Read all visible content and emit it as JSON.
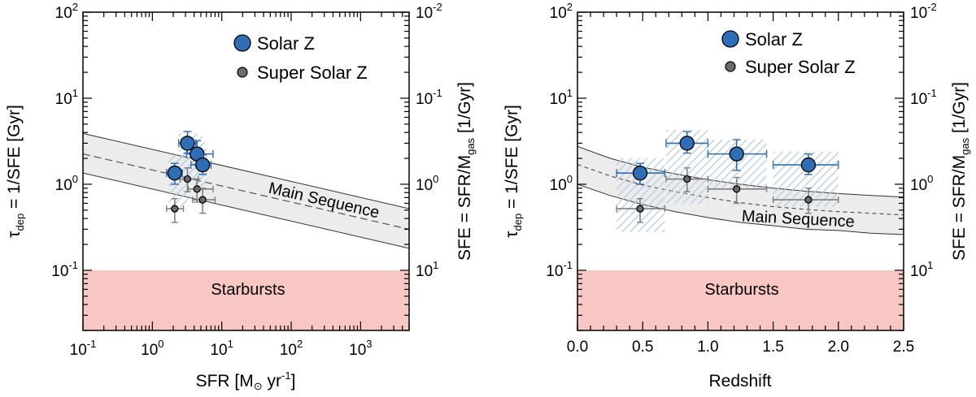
{
  "chart_data": [
    {
      "type": "scatter",
      "panel": "left",
      "xscale": "log",
      "yscale": "log",
      "xlim": [
        0.1,
        5000
      ],
      "ylim": [
        0.02,
        100
      ],
      "xlabel_main": "SFR [M",
      "xlabel_sun": "⊙",
      "xlabel_unit": " yr",
      "xlabel_exp": "-1",
      "xlabel_close": "]",
      "ylabel_tau": "τ",
      "ylabel_sub": "dep",
      "ylabel_rest": " = 1/SFE [Gyr]",
      "y2label_main": "SFE = SFR/M",
      "y2label_sub": "gas",
      "y2label_rest": " [1/Gyr]",
      "xticks": [
        {
          "v": 0.1,
          "base": "10",
          "exp": "-1"
        },
        {
          "v": 1,
          "base": "10",
          "exp": "0"
        },
        {
          "v": 10,
          "base": "10",
          "exp": "1"
        },
        {
          "v": 100,
          "base": "10",
          "exp": "2"
        },
        {
          "v": 1000,
          "base": "10",
          "exp": "3"
        }
      ],
      "yticks": [
        {
          "v": 0.1,
          "base": "10",
          "exp": "-1"
        },
        {
          "v": 1,
          "base": "10",
          "exp": "0"
        },
        {
          "v": 10,
          "base": "10",
          "exp": "1"
        },
        {
          "v": 100,
          "base": "10",
          "exp": "2"
        }
      ],
      "y2ticks": [
        {
          "v": 0.1,
          "base": "10",
          "exp": "1"
        },
        {
          "v": 1,
          "base": "10",
          "exp": "0"
        },
        {
          "v": 10,
          "base": "10",
          "exp": "-1"
        },
        {
          "v": 100,
          "base": "10",
          "exp": "-2"
        }
      ],
      "starburst": {
        "ymax": 0.1,
        "label": "Starbursts",
        "color": "#f8c7c4"
      },
      "main_sequence": {
        "label": "Main Sequence",
        "x": [
          0.1,
          5000
        ],
        "center": [
          2.25,
          0.3
        ],
        "upper": [
          3.9,
          0.52
        ],
        "lower": [
          1.35,
          0.18
        ],
        "band_color": "#ececec"
      },
      "series": [
        {
          "name": "Solar Z",
          "color": "#2f6db5",
          "points": [
            {
              "x": 2.1,
              "y": 1.35,
              "xerr": [
                1.6,
                2.7
              ],
              "yerr": [
                1.0,
                1.75
              ],
              "box": [
                1.7,
                3.3,
                0.55,
                2.2
              ]
            },
            {
              "x": 3.2,
              "y": 3.0,
              "xerr": [
                2.4,
                4.2
              ],
              "yerr": [
                2.3,
                4.1
              ],
              "box": [
                2.4,
                4.4,
                1.2,
                3.9
              ]
            },
            {
              "x": 4.4,
              "y": 2.25,
              "xerr": [
                3.1,
                7.5
              ],
              "yerr": [
                1.7,
                3.2
              ],
              "box": [
                3.2,
                5.7,
                1.1,
                3.6
              ]
            },
            {
              "x": 5.3,
              "y": 1.68,
              "xerr": [
                3.6,
                7.0
              ],
              "yerr": [
                1.3,
                2.2
              ],
              "box": [
                4.0,
                6.2,
                0.95,
                2.6
              ]
            }
          ]
        },
        {
          "name": "Super Solar Z",
          "color": "#6b6b6b",
          "points": [
            {
              "x": 2.1,
              "y": 0.52,
              "xerr": [
                1.6,
                2.8
              ],
              "yerr": [
                0.36,
                0.68
              ]
            },
            {
              "x": 3.2,
              "y": 1.15,
              "xerr": [
                2.5,
                4.6
              ],
              "yerr": [
                0.82,
                1.55
              ]
            },
            {
              "x": 4.4,
              "y": 0.88,
              "xerr": [
                3.3,
                7.5
              ],
              "yerr": [
                0.62,
                1.15
              ]
            },
            {
              "x": 5.3,
              "y": 0.66,
              "xerr": [
                3.8,
                8.0
              ],
              "yerr": [
                0.46,
                0.9
              ]
            }
          ]
        }
      ]
    },
    {
      "type": "scatter",
      "panel": "right",
      "xscale": "linear",
      "yscale": "log",
      "xlim": [
        0,
        2.5
      ],
      "ylim": [
        0.02,
        100
      ],
      "xlabel": "Redshift",
      "ylabel_tau": "τ",
      "ylabel_sub": "dep",
      "ylabel_rest": " = 1/SFE [Gyr]",
      "y2label_main": "SFE = SFR/M",
      "y2label_sub": "gas",
      "y2label_rest": " [1/Gyr]",
      "xticks": [
        {
          "v": 0.0,
          "label": "0.0"
        },
        {
          "v": 0.5,
          "label": "0.5"
        },
        {
          "v": 1.0,
          "label": "1.0"
        },
        {
          "v": 1.5,
          "label": "1.5"
        },
        {
          "v": 2.0,
          "label": "2.0"
        },
        {
          "v": 2.5,
          "label": "2.5"
        }
      ],
      "yticks": [
        {
          "v": 0.1,
          "base": "10",
          "exp": "-1"
        },
        {
          "v": 1,
          "base": "10",
          "exp": "0"
        },
        {
          "v": 10,
          "base": "10",
          "exp": "1"
        },
        {
          "v": 100,
          "base": "10",
          "exp": "2"
        }
      ],
      "y2ticks": [
        {
          "v": 0.1,
          "base": "10",
          "exp": "1"
        },
        {
          "v": 1,
          "base": "10",
          "exp": "0"
        },
        {
          "v": 10,
          "base": "10",
          "exp": "-1"
        },
        {
          "v": 100,
          "base": "10",
          "exp": "-2"
        }
      ],
      "starburst": {
        "ymax": 0.1,
        "label": "Starbursts",
        "color": "#f8c7c4"
      },
      "main_sequence": {
        "label": "Main Sequence",
        "x": [
          0,
          0.25,
          0.5,
          0.75,
          1.0,
          1.25,
          1.5,
          1.75,
          2.0,
          2.25,
          2.5
        ],
        "center": [
          1.7,
          1.25,
          0.98,
          0.82,
          0.7,
          0.61,
          0.55,
          0.51,
          0.48,
          0.46,
          0.44
        ],
        "upper": [
          2.75,
          2.0,
          1.58,
          1.32,
          1.13,
          1.0,
          0.9,
          0.83,
          0.78,
          0.74,
          0.71
        ],
        "lower": [
          1.0,
          0.74,
          0.58,
          0.48,
          0.41,
          0.36,
          0.33,
          0.3,
          0.29,
          0.27,
          0.26
        ],
        "band_color": "#ececec"
      },
      "series": [
        {
          "name": "Solar Z",
          "color": "#2f6db5",
          "points": [
            {
              "x": 0.48,
              "y": 1.35,
              "xerr": [
                0.3,
                0.67
              ],
              "yerr": [
                1.0,
                1.75
              ],
              "box": [
                0.3,
                0.67,
                0.28,
                2.0
              ]
            },
            {
              "x": 0.84,
              "y": 3.0,
              "xerr": [
                0.68,
                1.0
              ],
              "yerr": [
                2.3,
                4.1
              ],
              "box": [
                0.68,
                1.0,
                0.6,
                4.3
              ]
            },
            {
              "x": 1.22,
              "y": 2.25,
              "xerr": [
                1.0,
                1.45
              ],
              "yerr": [
                1.45,
                3.3
              ],
              "box": [
                1.0,
                1.45,
                0.9,
                3.3
              ]
            },
            {
              "x": 1.77,
              "y": 1.68,
              "xerr": [
                1.5,
                2.0
              ],
              "yerr": [
                1.3,
                2.25
              ],
              "box": [
                1.5,
                2.0,
                0.55,
                2.4
              ]
            }
          ]
        },
        {
          "name": "Super Solar Z",
          "color": "#6b6b6b",
          "points": [
            {
              "x": 0.48,
              "y": 0.52,
              "xerr": [
                0.3,
                0.67
              ],
              "yerr": [
                0.36,
                0.68
              ]
            },
            {
              "x": 0.84,
              "y": 1.15,
              "xerr": [
                0.68,
                1.0
              ],
              "yerr": [
                0.82,
                1.55
              ]
            },
            {
              "x": 1.22,
              "y": 0.88,
              "xerr": [
                1.0,
                1.45
              ],
              "yerr": [
                0.6,
                1.2
              ]
            },
            {
              "x": 1.77,
              "y": 0.66,
              "xerr": [
                1.5,
                2.0
              ],
              "yerr": [
                0.46,
                0.9
              ]
            }
          ]
        }
      ]
    }
  ],
  "legend": {
    "items": [
      {
        "label": "Solar Z",
        "color": "#2f6db5",
        "size": "large"
      },
      {
        "label": "Super Solar Z",
        "color": "#6b6b6b",
        "size": "small"
      }
    ]
  }
}
